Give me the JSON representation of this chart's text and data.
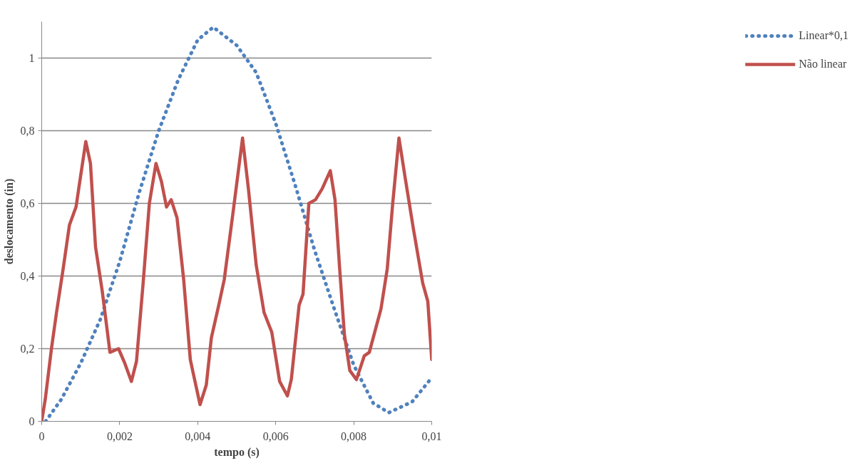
{
  "chart_data": {
    "type": "line",
    "xlabel": "tempo (s)",
    "ylabel": "deslocamento (in)",
    "xlim": [
      0,
      0.01
    ],
    "ylim": [
      0,
      1.1
    ],
    "xticks": [
      0,
      {
        "value": 0.002,
        "label": "0,002"
      },
      {
        "value": 0.004,
        "label": "0,004"
      },
      {
        "value": 0.006,
        "label": "0,006"
      },
      {
        "value": 0.008,
        "label": "0,008"
      },
      {
        "value": 0.01,
        "label": "0,01"
      }
    ],
    "yticks": [
      0,
      {
        "value": 0.2,
        "label": "0,2"
      },
      {
        "value": 0.4,
        "label": "0,4"
      },
      {
        "value": 0.6,
        "label": "0,6"
      },
      {
        "value": 0.8,
        "label": "0,8"
      },
      1
    ],
    "grid": "y",
    "legend": "right",
    "series": [
      {
        "name": "Linear*0,1",
        "color": "#4f81bd",
        "line_style": "dotted",
        "x": [
          0.0001,
          0.0005,
          0.001,
          0.0015,
          0.002,
          0.0025,
          0.003,
          0.0035,
          0.004,
          0.0044,
          0.005,
          0.0055,
          0.006,
          0.0065,
          0.007,
          0.0075,
          0.008,
          0.0085,
          0.0089,
          0.0095,
          0.01
        ],
        "values": [
          0,
          0.06,
          0.16,
          0.28,
          0.44,
          0.63,
          0.8,
          0.94,
          1.05,
          1.085,
          1.035,
          0.96,
          0.82,
          0.65,
          0.47,
          0.31,
          0.155,
          0.05,
          0.024,
          0.054,
          0.12
        ]
      },
      {
        "name": "Não linear",
        "color": "#c0504d",
        "line_style": "solid",
        "x": [
          0,
          9e-05,
          0.00025,
          0.00038,
          0.00055,
          0.00071,
          0.00088,
          0.00099,
          0.00113,
          0.00125,
          0.00138,
          0.00155,
          0.00175,
          0.00197,
          0.00213,
          0.0023,
          0.00243,
          0.0026,
          0.00276,
          0.00293,
          0.00307,
          0.0032,
          0.00332,
          0.00347,
          0.00364,
          0.00381,
          0.00389,
          0.00406,
          0.00422,
          0.00435,
          0.00454,
          0.00468,
          0.0049,
          0.00515,
          0.0053,
          0.0055,
          0.0057,
          0.0059,
          0.0061,
          0.0063,
          0.0064,
          0.0066,
          0.0067,
          0.00685,
          0.00702,
          0.00719,
          0.0074,
          0.00752,
          0.00764,
          0.00776,
          0.0079,
          0.00807,
          0.00827,
          0.0084,
          0.0087,
          0.00886,
          0.009,
          0.00916,
          0.00932,
          0.00953,
          0.00977,
          0.0099,
          0.01
        ],
        "values": [
          0,
          0.06,
          0.2,
          0.3,
          0.42,
          0.54,
          0.59,
          0.67,
          0.77,
          0.71,
          0.48,
          0.36,
          0.19,
          0.2,
          0.16,
          0.11,
          0.165,
          0.38,
          0.6,
          0.71,
          0.66,
          0.59,
          0.61,
          0.56,
          0.39,
          0.17,
          0.13,
          0.046,
          0.1,
          0.23,
          0.32,
          0.39,
          0.57,
          0.78,
          0.64,
          0.43,
          0.3,
          0.245,
          0.11,
          0.07,
          0.115,
          0.32,
          0.35,
          0.6,
          0.61,
          0.64,
          0.69,
          0.61,
          0.42,
          0.24,
          0.14,
          0.115,
          0.18,
          0.19,
          0.31,
          0.42,
          0.6,
          0.78,
          0.67,
          0.53,
          0.38,
          0.33,
          0.17
        ]
      }
    ]
  }
}
